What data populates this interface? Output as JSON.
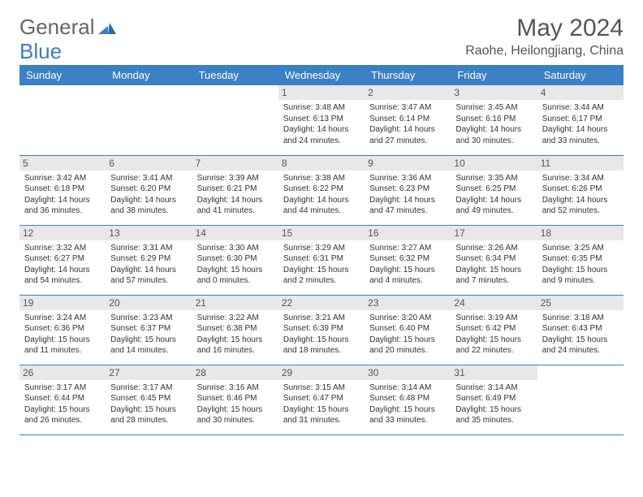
{
  "logo": {
    "part1": "General",
    "part2": "Blue"
  },
  "title": "May 2024",
  "location": "Raohe, Heilongjiang, China",
  "colors": {
    "header_bg": "#3b7fc4",
    "header_text": "#ffffff",
    "daynum_bg": "#e8e8e8",
    "border": "#3b7fc4",
    "text": "#333333",
    "logo_gray": "#666666",
    "logo_blue": "#3b7fc4",
    "background": "#ffffff"
  },
  "day_labels": [
    "Sunday",
    "Monday",
    "Tuesday",
    "Wednesday",
    "Thursday",
    "Friday",
    "Saturday"
  ],
  "weeks": [
    [
      {
        "n": "",
        "sr": "",
        "ss": "",
        "dl": ""
      },
      {
        "n": "",
        "sr": "",
        "ss": "",
        "dl": ""
      },
      {
        "n": "",
        "sr": "",
        "ss": "",
        "dl": ""
      },
      {
        "n": "1",
        "sr": "Sunrise: 3:48 AM",
        "ss": "Sunset: 6:13 PM",
        "dl": "Daylight: 14 hours and 24 minutes."
      },
      {
        "n": "2",
        "sr": "Sunrise: 3:47 AM",
        "ss": "Sunset: 6:14 PM",
        "dl": "Daylight: 14 hours and 27 minutes."
      },
      {
        "n": "3",
        "sr": "Sunrise: 3:45 AM",
        "ss": "Sunset: 6:16 PM",
        "dl": "Daylight: 14 hours and 30 minutes."
      },
      {
        "n": "4",
        "sr": "Sunrise: 3:44 AM",
        "ss": "Sunset: 6:17 PM",
        "dl": "Daylight: 14 hours and 33 minutes."
      }
    ],
    [
      {
        "n": "5",
        "sr": "Sunrise: 3:42 AM",
        "ss": "Sunset: 6:18 PM",
        "dl": "Daylight: 14 hours and 36 minutes."
      },
      {
        "n": "6",
        "sr": "Sunrise: 3:41 AM",
        "ss": "Sunset: 6:20 PM",
        "dl": "Daylight: 14 hours and 38 minutes."
      },
      {
        "n": "7",
        "sr": "Sunrise: 3:39 AM",
        "ss": "Sunset: 6:21 PM",
        "dl": "Daylight: 14 hours and 41 minutes."
      },
      {
        "n": "8",
        "sr": "Sunrise: 3:38 AM",
        "ss": "Sunset: 6:22 PM",
        "dl": "Daylight: 14 hours and 44 minutes."
      },
      {
        "n": "9",
        "sr": "Sunrise: 3:36 AM",
        "ss": "Sunset: 6:23 PM",
        "dl": "Daylight: 14 hours and 47 minutes."
      },
      {
        "n": "10",
        "sr": "Sunrise: 3:35 AM",
        "ss": "Sunset: 6:25 PM",
        "dl": "Daylight: 14 hours and 49 minutes."
      },
      {
        "n": "11",
        "sr": "Sunrise: 3:34 AM",
        "ss": "Sunset: 6:26 PM",
        "dl": "Daylight: 14 hours and 52 minutes."
      }
    ],
    [
      {
        "n": "12",
        "sr": "Sunrise: 3:32 AM",
        "ss": "Sunset: 6:27 PM",
        "dl": "Daylight: 14 hours and 54 minutes."
      },
      {
        "n": "13",
        "sr": "Sunrise: 3:31 AM",
        "ss": "Sunset: 6:29 PM",
        "dl": "Daylight: 14 hours and 57 minutes."
      },
      {
        "n": "14",
        "sr": "Sunrise: 3:30 AM",
        "ss": "Sunset: 6:30 PM",
        "dl": "Daylight: 15 hours and 0 minutes."
      },
      {
        "n": "15",
        "sr": "Sunrise: 3:29 AM",
        "ss": "Sunset: 6:31 PM",
        "dl": "Daylight: 15 hours and 2 minutes."
      },
      {
        "n": "16",
        "sr": "Sunrise: 3:27 AM",
        "ss": "Sunset: 6:32 PM",
        "dl": "Daylight: 15 hours and 4 minutes."
      },
      {
        "n": "17",
        "sr": "Sunrise: 3:26 AM",
        "ss": "Sunset: 6:34 PM",
        "dl": "Daylight: 15 hours and 7 minutes."
      },
      {
        "n": "18",
        "sr": "Sunrise: 3:25 AM",
        "ss": "Sunset: 6:35 PM",
        "dl": "Daylight: 15 hours and 9 minutes."
      }
    ],
    [
      {
        "n": "19",
        "sr": "Sunrise: 3:24 AM",
        "ss": "Sunset: 6:36 PM",
        "dl": "Daylight: 15 hours and 11 minutes."
      },
      {
        "n": "20",
        "sr": "Sunrise: 3:23 AM",
        "ss": "Sunset: 6:37 PM",
        "dl": "Daylight: 15 hours and 14 minutes."
      },
      {
        "n": "21",
        "sr": "Sunrise: 3:22 AM",
        "ss": "Sunset: 6:38 PM",
        "dl": "Daylight: 15 hours and 16 minutes."
      },
      {
        "n": "22",
        "sr": "Sunrise: 3:21 AM",
        "ss": "Sunset: 6:39 PM",
        "dl": "Daylight: 15 hours and 18 minutes."
      },
      {
        "n": "23",
        "sr": "Sunrise: 3:20 AM",
        "ss": "Sunset: 6:40 PM",
        "dl": "Daylight: 15 hours and 20 minutes."
      },
      {
        "n": "24",
        "sr": "Sunrise: 3:19 AM",
        "ss": "Sunset: 6:42 PM",
        "dl": "Daylight: 15 hours and 22 minutes."
      },
      {
        "n": "25",
        "sr": "Sunrise: 3:18 AM",
        "ss": "Sunset: 6:43 PM",
        "dl": "Daylight: 15 hours and 24 minutes."
      }
    ],
    [
      {
        "n": "26",
        "sr": "Sunrise: 3:17 AM",
        "ss": "Sunset: 6:44 PM",
        "dl": "Daylight: 15 hours and 26 minutes."
      },
      {
        "n": "27",
        "sr": "Sunrise: 3:17 AM",
        "ss": "Sunset: 6:45 PM",
        "dl": "Daylight: 15 hours and 28 minutes."
      },
      {
        "n": "28",
        "sr": "Sunrise: 3:16 AM",
        "ss": "Sunset: 6:46 PM",
        "dl": "Daylight: 15 hours and 30 minutes."
      },
      {
        "n": "29",
        "sr": "Sunrise: 3:15 AM",
        "ss": "Sunset: 6:47 PM",
        "dl": "Daylight: 15 hours and 31 minutes."
      },
      {
        "n": "30",
        "sr": "Sunrise: 3:14 AM",
        "ss": "Sunset: 6:48 PM",
        "dl": "Daylight: 15 hours and 33 minutes."
      },
      {
        "n": "31",
        "sr": "Sunrise: 3:14 AM",
        "ss": "Sunset: 6:49 PM",
        "dl": "Daylight: 15 hours and 35 minutes."
      },
      {
        "n": "",
        "sr": "",
        "ss": "",
        "dl": ""
      }
    ]
  ]
}
